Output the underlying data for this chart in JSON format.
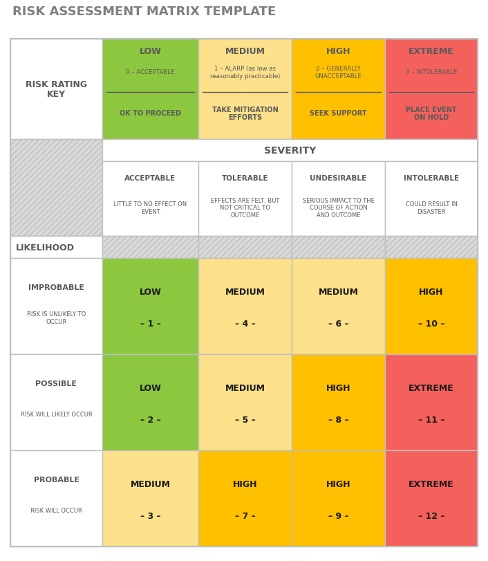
{
  "title": "RISK ASSESSMENT MATRIX TEMPLATE",
  "title_color": "#7f7f7f",
  "bg_color": "#ffffff",
  "border_color": "#bfbfbf",
  "text_dark": "#595959",
  "text_black": "#000000",
  "key_headers": [
    "LOW",
    "MEDIUM",
    "HIGH",
    "EXTREME"
  ],
  "key_subtitles": [
    "0 – ACCEPTABLE",
    "1 – ALARP (as low as\nreasonably practicable)",
    "2 – GENERALLY\nUNACCEPTABLE",
    "3 – INTOLERABLE"
  ],
  "key_actions": [
    "OK TO PROCEED",
    "TAKE MITIGATION\nEFFORTS",
    "SEEK SUPPORT",
    "PLACE EVENT\nON HOLD"
  ],
  "key_colors": [
    "#8dc63f",
    "#fce08a",
    "#ffc000",
    "#f4615c"
  ],
  "severity_cols": [
    "ACCEPTABLE",
    "TOLERABLE",
    "UNDESIRABLE",
    "INTOLERABLE"
  ],
  "severity_descs": [
    "LITTLE TO NO EFFECT ON\nEVENT",
    "EFFECTS ARE FELT, BUT\nNOT CRITICAL TO\nOUTCOME",
    "SERIOUS IMPACT TO THE\nCOURSE OF ACTION\nAND OUTCOME",
    "COULD RESULT IN\nDISASTER"
  ],
  "likelihood_rows": [
    {
      "label": "IMPROBABLE",
      "desc": "RISK IS UNLIKELY TO\nOCCUR"
    },
    {
      "label": "POSSIBLE",
      "desc": "RISK WILL LIKELY OCCUR"
    },
    {
      "label": "PROBABLE",
      "desc": "RISK WILL OCCUR"
    }
  ],
  "matrix": [
    [
      {
        "rating": "LOW",
        "number": "– 1 –",
        "color": "#8dc63f"
      },
      {
        "rating": "MEDIUM",
        "number": "– 4 –",
        "color": "#fce08a"
      },
      {
        "rating": "MEDIUM",
        "number": "– 6 –",
        "color": "#fce08a"
      },
      {
        "rating": "HIGH",
        "number": "– 10 –",
        "color": "#ffc000"
      }
    ],
    [
      {
        "rating": "LOW",
        "number": "– 2 –",
        "color": "#8dc63f"
      },
      {
        "rating": "MEDIUM",
        "number": "– 5 –",
        "color": "#fce08a"
      },
      {
        "rating": "HIGH",
        "number": "– 8 –",
        "color": "#ffc000"
      },
      {
        "rating": "EXTREME",
        "number": "– 11 –",
        "color": "#f4615c"
      }
    ],
    [
      {
        "rating": "MEDIUM",
        "number": "– 3 –",
        "color": "#fce08a"
      },
      {
        "rating": "HIGH",
        "number": "– 7 –",
        "color": "#ffc000"
      },
      {
        "rating": "HIGH",
        "number": "– 9 –",
        "color": "#ffc000"
      },
      {
        "rating": "EXTREME",
        "number": "– 12 –",
        "color": "#f4615c"
      }
    ]
  ]
}
